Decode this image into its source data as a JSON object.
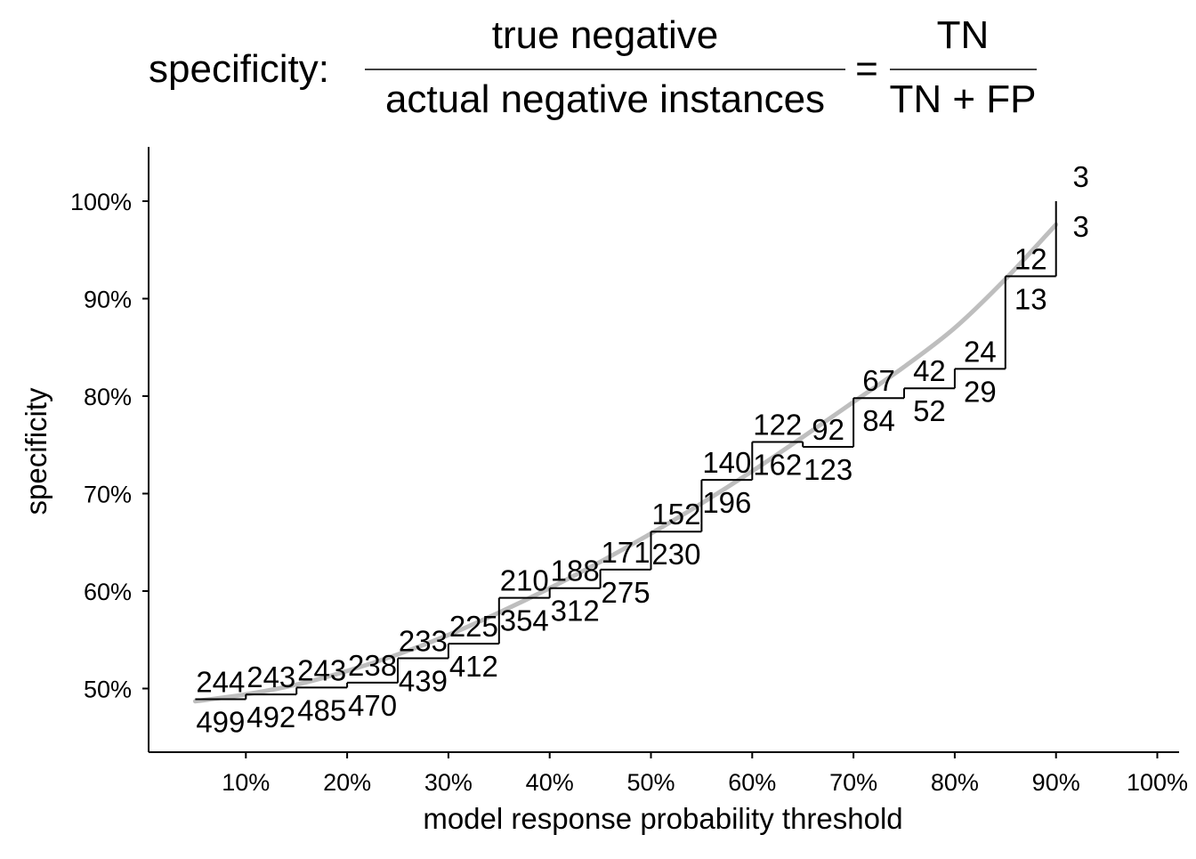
{
  "chart_data": {
    "type": "line",
    "title": {
      "prefix": "specificity:",
      "fraction1": {
        "numerator": "true negative",
        "denominator": "actual negative instances"
      },
      "equals": "=",
      "fraction2": {
        "numerator": "TN",
        "denominator": "TN + FP"
      }
    },
    "xlabel": "model response probability threshold",
    "ylabel": "specificity",
    "xlim": [
      0.0,
      1.0
    ],
    "ylim": [
      0.43,
      1.05
    ],
    "x_ticks": [
      0.1,
      0.2,
      0.3,
      0.4,
      0.5,
      0.6,
      0.7,
      0.8,
      0.9,
      1.0
    ],
    "x_tick_labels": [
      "10%",
      "20%",
      "30%",
      "40%",
      "50%",
      "60%",
      "70%",
      "80%",
      "90%",
      "100%"
    ],
    "y_ticks": [
      0.5,
      0.6,
      0.7,
      0.8,
      0.9,
      1.0
    ],
    "y_tick_labels": [
      "50%",
      "60%",
      "70%",
      "80%",
      "90%",
      "100%"
    ],
    "grid": false,
    "series": [
      {
        "style": "step",
        "color": "#000000",
        "points": [
          {
            "x_start": 0.05,
            "x_end": 0.1,
            "specificity": 0.489,
            "tn": "244",
            "actual_negative": "499"
          },
          {
            "x_start": 0.1,
            "x_end": 0.15,
            "specificity": 0.494,
            "tn": "243",
            "actual_negative": "492"
          },
          {
            "x_start": 0.15,
            "x_end": 0.2,
            "specificity": 0.501,
            "tn": "243",
            "actual_negative": "485"
          },
          {
            "x_start": 0.2,
            "x_end": 0.25,
            "specificity": 0.506,
            "tn": "238",
            "actual_negative": "470"
          },
          {
            "x_start": 0.25,
            "x_end": 0.3,
            "specificity": 0.531,
            "tn": "233",
            "actual_negative": "439"
          },
          {
            "x_start": 0.3,
            "x_end": 0.35,
            "specificity": 0.546,
            "tn": "225",
            "actual_negative": "412"
          },
          {
            "x_start": 0.35,
            "x_end": 0.4,
            "specificity": 0.593,
            "tn": "210",
            "actual_negative": "354"
          },
          {
            "x_start": 0.4,
            "x_end": 0.45,
            "specificity": 0.603,
            "tn": "188",
            "actual_negative": "312"
          },
          {
            "x_start": 0.45,
            "x_end": 0.5,
            "specificity": 0.622,
            "tn": "171",
            "actual_negative": "275"
          },
          {
            "x_start": 0.5,
            "x_end": 0.55,
            "specificity": 0.661,
            "tn": "152",
            "actual_negative": "230"
          },
          {
            "x_start": 0.55,
            "x_end": 0.6,
            "specificity": 0.714,
            "tn": "140",
            "actual_negative": "196"
          },
          {
            "x_start": 0.6,
            "x_end": 0.65,
            "specificity": 0.753,
            "tn": "122",
            "actual_negative": "162"
          },
          {
            "x_start": 0.65,
            "x_end": 0.7,
            "specificity": 0.748,
            "tn": "92",
            "actual_negative": "123"
          },
          {
            "x_start": 0.7,
            "x_end": 0.75,
            "specificity": 0.798,
            "tn": "67",
            "actual_negative": "84"
          },
          {
            "x_start": 0.75,
            "x_end": 0.8,
            "specificity": 0.808,
            "tn": "42",
            "actual_negative": "52"
          },
          {
            "x_start": 0.8,
            "x_end": 0.85,
            "specificity": 0.828,
            "tn": "24",
            "actual_negative": "29"
          },
          {
            "x_start": 0.85,
            "x_end": 0.9,
            "specificity": 0.923,
            "tn": "12",
            "actual_negative": "13"
          },
          {
            "x_start": 0.9,
            "x_end": 0.9,
            "specificity": 1.0,
            "tn": "3",
            "actual_negative": "3"
          }
        ]
      },
      {
        "style": "smooth",
        "color": "#bebebe",
        "x": [
          0.05,
          0.1,
          0.15,
          0.2,
          0.25,
          0.3,
          0.35,
          0.4,
          0.45,
          0.5,
          0.55,
          0.6,
          0.65,
          0.7,
          0.75,
          0.8,
          0.85,
          0.9
        ],
        "y": [
          0.487,
          0.494,
          0.504,
          0.518,
          0.535,
          0.555,
          0.578,
          0.603,
          0.63,
          0.659,
          0.69,
          0.723,
          0.758,
          0.794,
          0.83,
          0.87,
          0.92,
          0.976
        ]
      }
    ]
  }
}
